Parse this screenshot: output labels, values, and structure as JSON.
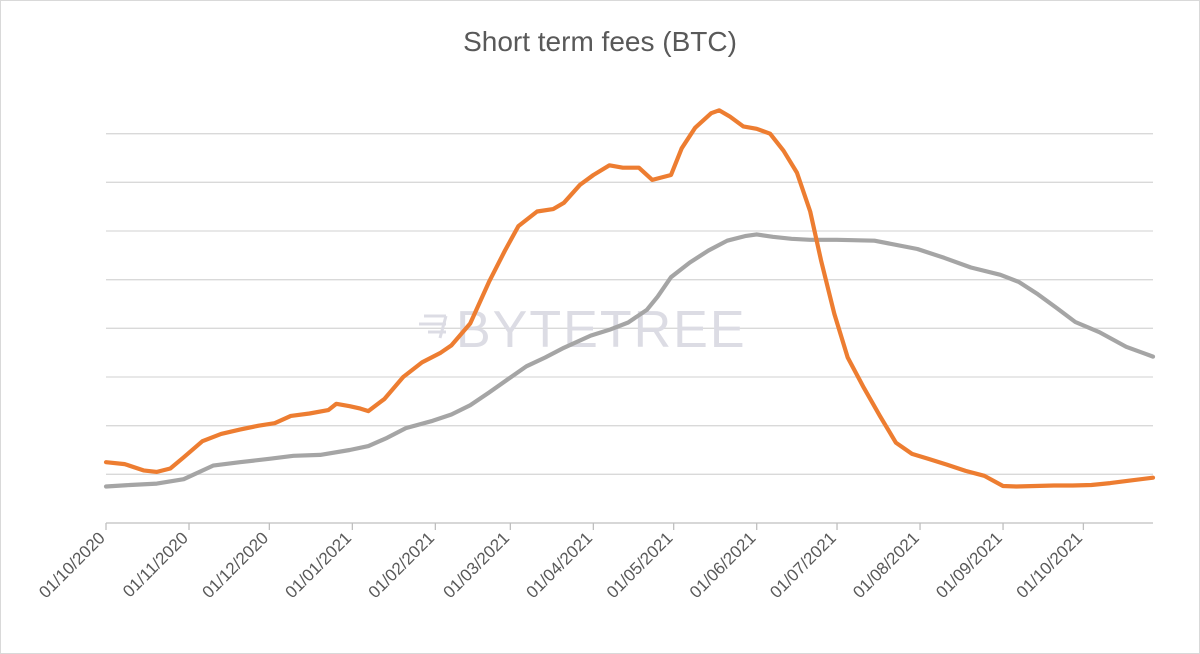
{
  "chart_data": {
    "type": "line",
    "title": "Short term fees (BTC)",
    "xlabel": "",
    "ylabel": "",
    "x_start": "2020-10-01",
    "x_end": "2021-10-27",
    "y_axis_labels_shown": false,
    "ylim": [
      0,
      9
    ],
    "gridlines": [
      1,
      2,
      3,
      4,
      5,
      6,
      7,
      8
    ],
    "legend": "none",
    "x_ticks": [
      "01/10/2020",
      "01/11/2020",
      "01/12/2020",
      "01/01/2021",
      "01/02/2021",
      "01/03/2021",
      "01/04/2021",
      "01/05/2021",
      "01/06/2021",
      "01/07/2021",
      "01/08/2021",
      "01/09/2021",
      "01/10/2021"
    ],
    "x_tick_dates": [
      "2020-10-01",
      "2020-11-01",
      "2020-12-01",
      "2021-01-01",
      "2021-02-01",
      "2021-03-01",
      "2021-04-01",
      "2021-05-01",
      "2021-06-01",
      "2021-07-01",
      "2021-08-01",
      "2021-09-01",
      "2021-10-01"
    ],
    "series": [
      {
        "color": "#ED7D31",
        "points": [
          [
            "2020-10-01",
            1.25
          ],
          [
            "2020-10-08",
            1.21
          ],
          [
            "2020-10-15",
            1.08
          ],
          [
            "2020-10-20",
            1.05
          ],
          [
            "2020-10-25",
            1.12
          ],
          [
            "2020-10-30",
            1.35
          ],
          [
            "2020-11-06",
            1.68
          ],
          [
            "2020-11-13",
            1.83
          ],
          [
            "2020-11-20",
            1.92
          ],
          [
            "2020-11-27",
            2.0
          ],
          [
            "2020-12-03",
            2.05
          ],
          [
            "2020-12-09",
            2.2
          ],
          [
            "2020-12-16",
            2.25
          ],
          [
            "2020-12-23",
            2.32
          ],
          [
            "2020-12-26",
            2.45
          ],
          [
            "2020-12-31",
            2.4
          ],
          [
            "2021-01-04",
            2.35
          ],
          [
            "2021-01-07",
            2.3
          ],
          [
            "2021-01-13",
            2.55
          ],
          [
            "2021-01-20",
            3.0
          ],
          [
            "2021-01-27",
            3.3
          ],
          [
            "2021-02-03",
            3.5
          ],
          [
            "2021-02-07",
            3.65
          ],
          [
            "2021-02-14",
            4.1
          ],
          [
            "2021-02-21",
            4.95
          ],
          [
            "2021-02-27",
            5.6
          ],
          [
            "2021-03-04",
            6.1
          ],
          [
            "2021-03-11",
            6.4
          ],
          [
            "2021-03-17",
            6.45
          ],
          [
            "2021-03-21",
            6.58
          ],
          [
            "2021-03-27",
            6.95
          ],
          [
            "2021-04-01",
            7.15
          ],
          [
            "2021-04-07",
            7.35
          ],
          [
            "2021-04-12",
            7.3
          ],
          [
            "2021-04-18",
            7.3
          ],
          [
            "2021-04-23",
            7.05
          ],
          [
            "2021-04-30",
            7.15
          ],
          [
            "2021-05-04",
            7.7
          ],
          [
            "2021-05-09",
            8.12
          ],
          [
            "2021-05-15",
            8.42
          ],
          [
            "2021-05-18",
            8.48
          ],
          [
            "2021-05-22",
            8.35
          ],
          [
            "2021-05-27",
            8.15
          ],
          [
            "2021-06-01",
            8.1
          ],
          [
            "2021-06-06",
            8.0
          ],
          [
            "2021-06-11",
            7.65
          ],
          [
            "2021-06-16",
            7.2
          ],
          [
            "2021-06-21",
            6.4
          ],
          [
            "2021-06-25",
            5.4
          ],
          [
            "2021-06-30",
            4.3
          ],
          [
            "2021-07-05",
            3.4
          ],
          [
            "2021-07-11",
            2.78
          ],
          [
            "2021-07-17",
            2.2
          ],
          [
            "2021-07-23",
            1.65
          ],
          [
            "2021-07-29",
            1.42
          ],
          [
            "2021-08-04",
            1.32
          ],
          [
            "2021-08-11",
            1.2
          ],
          [
            "2021-08-18",
            1.07
          ],
          [
            "2021-08-25",
            0.97
          ],
          [
            "2021-09-01",
            0.76
          ],
          [
            "2021-09-06",
            0.75
          ],
          [
            "2021-09-13",
            0.76
          ],
          [
            "2021-09-20",
            0.77
          ],
          [
            "2021-09-27",
            0.77
          ],
          [
            "2021-10-04",
            0.78
          ],
          [
            "2021-10-11",
            0.82
          ],
          [
            "2021-10-18",
            0.87
          ],
          [
            "2021-10-27",
            0.93
          ]
        ]
      },
      {
        "color": "#A5A5A5",
        "points": [
          [
            "2020-10-01",
            0.75
          ],
          [
            "2020-10-10",
            0.78
          ],
          [
            "2020-10-20",
            0.81
          ],
          [
            "2020-10-30",
            0.9
          ],
          [
            "2020-11-10",
            1.18
          ],
          [
            "2020-11-20",
            1.25
          ],
          [
            "2020-12-01",
            1.32
          ],
          [
            "2020-12-10",
            1.38
          ],
          [
            "2020-12-20",
            1.4
          ],
          [
            "2020-12-31",
            1.5
          ],
          [
            "2021-01-07",
            1.58
          ],
          [
            "2021-01-14",
            1.75
          ],
          [
            "2021-01-21",
            1.95
          ],
          [
            "2021-01-31",
            2.1
          ],
          [
            "2021-02-07",
            2.23
          ],
          [
            "2021-02-14",
            2.42
          ],
          [
            "2021-02-21",
            2.68
          ],
          [
            "2021-02-28",
            2.95
          ],
          [
            "2021-03-07",
            3.22
          ],
          [
            "2021-03-14",
            3.4
          ],
          [
            "2021-03-21",
            3.6
          ],
          [
            "2021-03-31",
            3.85
          ],
          [
            "2021-04-07",
            3.97
          ],
          [
            "2021-04-14",
            4.12
          ],
          [
            "2021-04-21",
            4.38
          ],
          [
            "2021-04-25",
            4.65
          ],
          [
            "2021-04-30",
            5.05
          ],
          [
            "2021-05-07",
            5.35
          ],
          [
            "2021-05-14",
            5.6
          ],
          [
            "2021-05-21",
            5.8
          ],
          [
            "2021-05-28",
            5.9
          ],
          [
            "2021-06-01",
            5.93
          ],
          [
            "2021-06-07",
            5.88
          ],
          [
            "2021-06-14",
            5.84
          ],
          [
            "2021-06-21",
            5.82
          ],
          [
            "2021-07-01",
            5.82
          ],
          [
            "2021-07-15",
            5.8
          ],
          [
            "2021-07-31",
            5.63
          ],
          [
            "2021-08-10",
            5.45
          ],
          [
            "2021-08-20",
            5.25
          ],
          [
            "2021-08-31",
            5.1
          ],
          [
            "2021-09-07",
            4.95
          ],
          [
            "2021-09-14",
            4.7
          ],
          [
            "2021-09-21",
            4.42
          ],
          [
            "2021-09-28",
            4.13
          ],
          [
            "2021-10-07",
            3.92
          ],
          [
            "2021-10-17",
            3.62
          ],
          [
            "2021-10-27",
            3.42
          ]
        ]
      }
    ]
  },
  "watermark": {
    "text": "BYTETREE",
    "color": "#dcdce4"
  }
}
